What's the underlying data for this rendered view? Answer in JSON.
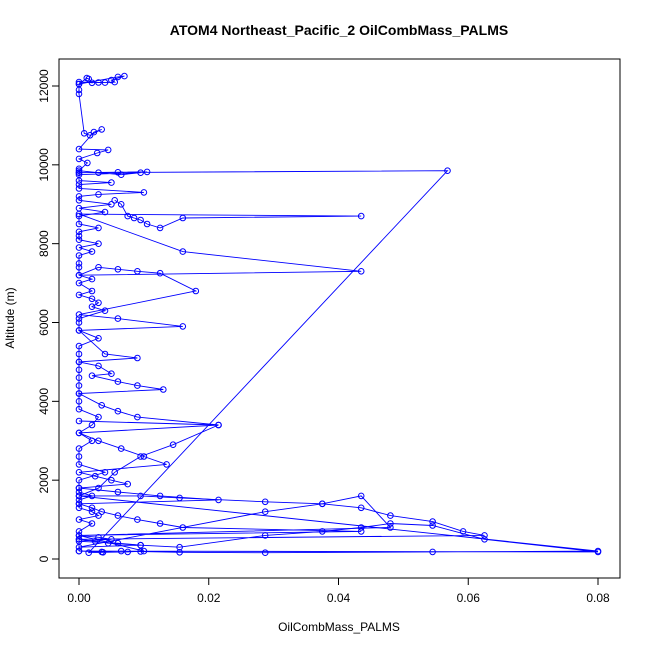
{
  "chart_data": {
    "type": "scatter",
    "title": "ATOM4 Northeast_Pacific_2 OilCombMass_PALMS",
    "xlabel": "OilCombMass_PALMS",
    "ylabel": "Altitude (m)",
    "xlim": [
      0,
      0.08
    ],
    "ylim": [
      0,
      12300
    ],
    "x_ticks": [
      0.0,
      0.02,
      0.04,
      0.06,
      0.08
    ],
    "x_tick_labels": [
      "0.00",
      "0.02",
      "0.04",
      "0.06",
      "0.08"
    ],
    "y_ticks": [
      0,
      2000,
      4000,
      6000,
      8000,
      10000,
      12000
    ],
    "y_tick_labels": [
      "0",
      "2000",
      "4000",
      "6000",
      "8000",
      "10000",
      "12000"
    ],
    "grid": false,
    "legend": "none",
    "colors": {
      "series": "#0000ff",
      "axes": "#000000",
      "background": "#ffffff"
    },
    "series": [
      {
        "mode": "lines+points",
        "marker": "open-circle",
        "x": [
          0.0,
          0.0,
          0.0012,
          0.0015,
          0.002,
          0.0,
          0.003,
          0.004,
          0.0055,
          0.005,
          0.007,
          0.006,
          0.0,
          0.0,
          0.0008,
          0.0017,
          0.0035,
          0.0023,
          0.0,
          0.0045,
          0.0028,
          0.0,
          0.0013,
          0.0,
          0.003,
          0.0065,
          0.0095,
          0.0,
          0.0,
          0.0,
          0.005,
          0.0,
          0.0,
          0.01,
          0.003,
          0.0,
          0.0,
          0.005,
          0.0,
          0.004,
          0.0,
          0.0,
          0.003,
          0.0,
          0.0,
          0.0,
          0.003,
          0.0,
          0.002,
          0.0,
          0.0,
          0.0,
          0.0,
          0.002,
          0.0,
          0.002,
          0.0,
          0.002,
          0.003,
          0.002,
          0.004,
          0.0,
          0.0,
          0.0,
          0.003,
          0.0,
          0.0,
          0.0,
          0.0,
          0.0,
          0.0,
          0.0,
          0.0,
          0.0,
          0.003,
          0.002,
          0.0,
          0.002,
          0.0,
          0.0,
          0.0,
          0.004,
          0.0,
          0.0,
          0.0,
          0.002,
          0.0,
          0.0,
          0.0,
          0.002,
          0.003,
          0.0,
          0.002,
          0.0,
          0.0,
          0.0
        ],
        "y": [
          11900,
          12050,
          12200,
          12180,
          12080,
          12100,
          12090,
          12085,
          12100,
          12150,
          12250,
          12230,
          12050,
          11800,
          10800,
          10750,
          10900,
          10830,
          10400,
          10380,
          10300,
          10150,
          10050,
          9850,
          9800,
          9750,
          9800,
          9750,
          9900,
          9600,
          9550,
          9500,
          9400,
          9300,
          9250,
          9200,
          9100,
          9000,
          8900,
          8800,
          8700,
          8500,
          8400,
          8300,
          8200,
          8100,
          8000,
          7900,
          7800,
          7700,
          7500,
          7400,
          7200,
          7100,
          7000,
          6800,
          6700,
          6600,
          6500,
          6400,
          6300,
          6100,
          6000,
          5800,
          5600,
          5400,
          5200,
          5000,
          4800,
          4600,
          4400,
          4200,
          4000,
          3800,
          3600,
          3400,
          3200,
          3000,
          2800,
          2600,
          2400,
          2200,
          2000,
          1800,
          1700,
          1600,
          1500,
          1400,
          1300,
          1200,
          1100,
          1000,
          900,
          700,
          500,
          200
        ]
      },
      {
        "mode": "lines+points",
        "marker": "open-circle",
        "x": [
          0.0055,
          0.0065,
          0.0075,
          0.0085,
          0.0095,
          0.0105,
          0.0125,
          0.016,
          0.0435,
          0.0,
          0.016,
          0.0435,
          0.0,
          0.003,
          0.006,
          0.009,
          0.0125,
          0.018,
          0.0,
          0.006,
          0.016,
          0.0,
          0.004,
          0.009,
          0.0,
          0.003,
          0.005,
          0.002,
          0.006,
          0.009,
          0.013,
          0.0,
          0.0035,
          0.006,
          0.009,
          0.0215,
          0.0,
          0.003,
          0.0065,
          0.01,
          0.0135,
          0.0,
          0.0025,
          0.005,
          0.0075,
          0.0,
          0.006,
          0.0125,
          0.0215,
          0.0,
          0.002,
          0.0035,
          0.006,
          0.009,
          0.0125,
          0.016,
          0.0435,
          0.0,
          0.003,
          0.005,
          0.0,
          0.006,
          0.0095,
          0.0,
          0.0287,
          0.0375,
          0.0435,
          0.048,
          0.0,
          0.01,
          0.0075,
          0.0037,
          0.0015,
          0.0568,
          0.0,
          0.0105,
          0.006,
          0.0
        ],
        "y": [
          9100,
          9000,
          8700,
          8650,
          8600,
          8500,
          8400,
          8650,
          8700,
          8750,
          7800,
          7300,
          7200,
          7400,
          7350,
          7300,
          7250,
          6800,
          6200,
          6100,
          5900,
          5800,
          5200,
          5100,
          5000,
          4900,
          4700,
          4650,
          4500,
          4400,
          4300,
          4200,
          3900,
          3750,
          3600,
          3400,
          3200,
          3000,
          2800,
          2600,
          2400,
          2200,
          2100,
          2000,
          1900,
          1800,
          1700,
          1600,
          1500,
          1400,
          1300,
          1200,
          1100,
          1000,
          900,
          800,
          700,
          600,
          550,
          500,
          450,
          400,
          350,
          300,
          1200,
          1400,
          1600,
          800,
          600,
          200,
          180,
          170,
          160,
          9850,
          9800,
          9820,
          9810,
          9800
        ]
      },
      {
        "mode": "lines+points",
        "marker": "open-circle",
        "x": [
          0.0,
          0.0095,
          0.0155,
          0.0287,
          0.0375,
          0.0435,
          0.048,
          0.0545,
          0.0592,
          0.0625,
          0.0,
          0.0025,
          0.0045,
          0.0095,
          0.0155,
          0.0287,
          0.0375,
          0.0435,
          0.048,
          0.0545,
          0.0625,
          0.08,
          0.0,
          0.0035,
          0.0065,
          0.0095,
          0.0155,
          0.0287,
          0.0545,
          0.08,
          0.0,
          0.003,
          0.0055,
          0.0095,
          0.0145,
          0.0215,
          0.0
        ],
        "y": [
          1600,
          1600,
          1550,
          1450,
          1400,
          1300,
          1100,
          950,
          700,
          600,
          500,
          450,
          400,
          350,
          300,
          600,
          700,
          800,
          900,
          850,
          500,
          180,
          200,
          180,
          200,
          190,
          170,
          160,
          180,
          200,
          1600,
          1800,
          2200,
          2600,
          2900,
          3400,
          3500
        ]
      }
    ]
  }
}
